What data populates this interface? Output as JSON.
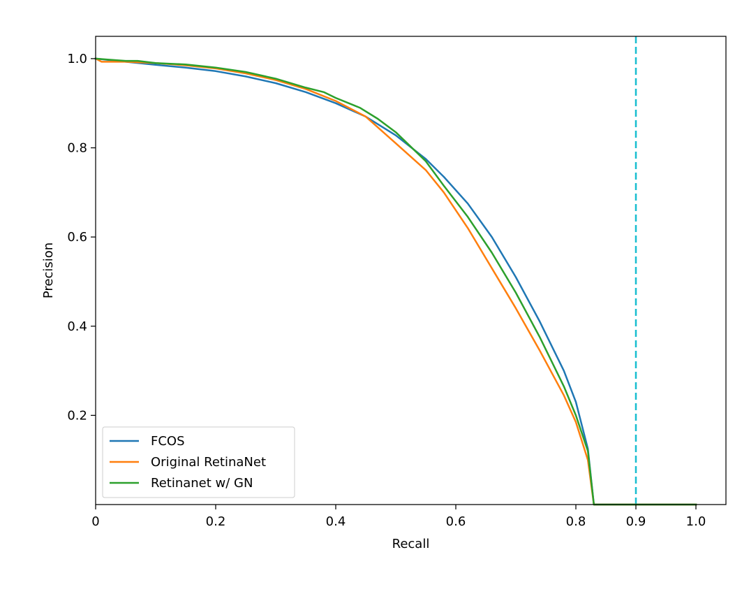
{
  "chart_data": {
    "type": "line",
    "title": "",
    "xlabel": "Recall",
    "ylabel": "Precision",
    "xlim": [
      0,
      1.05
    ],
    "ylim": [
      0,
      1.05
    ],
    "xticks": [
      0,
      0.2,
      0.4,
      0.6,
      0.8,
      0.9,
      1.0
    ],
    "xtick_labels": [
      "0",
      "0.2",
      "0.4",
      "0.6",
      "0.8",
      "0.9",
      "1.0"
    ],
    "yticks": [
      0.2,
      0.4,
      0.6,
      0.8,
      1.0
    ],
    "ytick_labels": [
      "0.2",
      "0.4",
      "0.6",
      "0.8",
      "1.0"
    ],
    "grid": false,
    "legend_position": "lower-left",
    "reference_line": {
      "orientation": "vertical",
      "x": 0.9,
      "style": "dashed",
      "color": "#17becf"
    },
    "series": [
      {
        "name": "FCOS",
        "color": "#1f77b4",
        "x": [
          0.0,
          0.05,
          0.1,
          0.15,
          0.2,
          0.25,
          0.3,
          0.35,
          0.4,
          0.45,
          0.5,
          0.55,
          0.58,
          0.62,
          0.66,
          0.7,
          0.74,
          0.78,
          0.8,
          0.82,
          0.83,
          0.9,
          1.0
        ],
        "y": [
          1.0,
          0.993,
          0.986,
          0.98,
          0.972,
          0.96,
          0.945,
          0.925,
          0.9,
          0.87,
          0.828,
          0.775,
          0.735,
          0.675,
          0.6,
          0.51,
          0.41,
          0.3,
          0.23,
          0.125,
          0.0,
          0.0,
          0.0
        ]
      },
      {
        "name": "Original RetinaNet",
        "color": "#ff7f0e",
        "x": [
          0.0,
          0.01,
          0.05,
          0.1,
          0.15,
          0.2,
          0.25,
          0.3,
          0.35,
          0.4,
          0.45,
          0.5,
          0.55,
          0.58,
          0.62,
          0.66,
          0.7,
          0.74,
          0.78,
          0.8,
          0.82,
          0.83,
          0.9,
          1.0
        ],
        "y": [
          1.0,
          0.993,
          0.993,
          0.99,
          0.985,
          0.978,
          0.967,
          0.952,
          0.932,
          0.905,
          0.87,
          0.81,
          0.75,
          0.7,
          0.62,
          0.53,
          0.44,
          0.345,
          0.245,
          0.185,
          0.1,
          0.0,
          0.0,
          0.0
        ]
      },
      {
        "name": "Retinanet w/ GN",
        "color": "#2ca02c",
        "x": [
          0.0,
          0.02,
          0.05,
          0.07,
          0.1,
          0.15,
          0.2,
          0.25,
          0.3,
          0.35,
          0.38,
          0.4,
          0.44,
          0.47,
          0.5,
          0.55,
          0.58,
          0.62,
          0.66,
          0.7,
          0.74,
          0.78,
          0.8,
          0.82,
          0.83,
          0.9,
          1.0
        ],
        "y": [
          1.0,
          0.998,
          0.995,
          0.995,
          0.99,
          0.987,
          0.98,
          0.97,
          0.955,
          0.935,
          0.925,
          0.912,
          0.89,
          0.865,
          0.835,
          0.77,
          0.715,
          0.645,
          0.565,
          0.475,
          0.375,
          0.265,
          0.2,
          0.12,
          0.0,
          0.0,
          0.0
        ]
      }
    ]
  }
}
